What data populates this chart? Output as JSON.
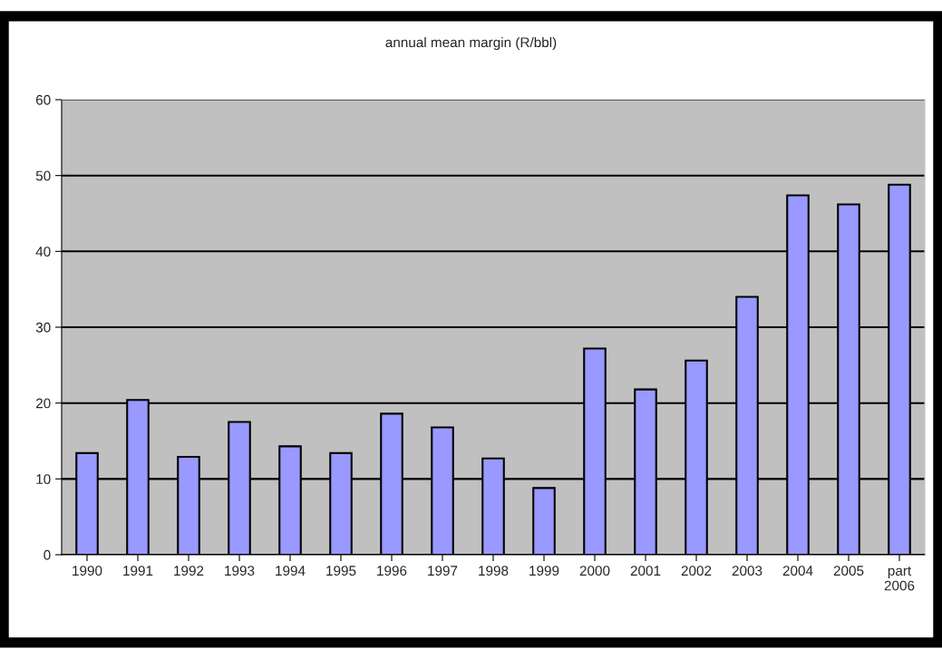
{
  "chart_data": {
    "type": "bar",
    "title": "annual mean margin (R/bbl)",
    "categories": [
      "1990",
      "1991",
      "1992",
      "1993",
      "1994",
      "1995",
      "1996",
      "1997",
      "1998",
      "1999",
      "2000",
      "2001",
      "2002",
      "2003",
      "2004",
      "2005",
      "part\n2006"
    ],
    "values": [
      13.4,
      20.4,
      12.9,
      17.5,
      14.3,
      13.4,
      18.6,
      16.8,
      12.7,
      8.8,
      27.2,
      21.8,
      25.6,
      34.0,
      47.4,
      46.2,
      48.8
    ],
    "color": "#9999ff",
    "ylim": [
      0,
      60
    ],
    "yticks": [
      0,
      10,
      20,
      30,
      40,
      50,
      60
    ],
    "grid": "y"
  }
}
